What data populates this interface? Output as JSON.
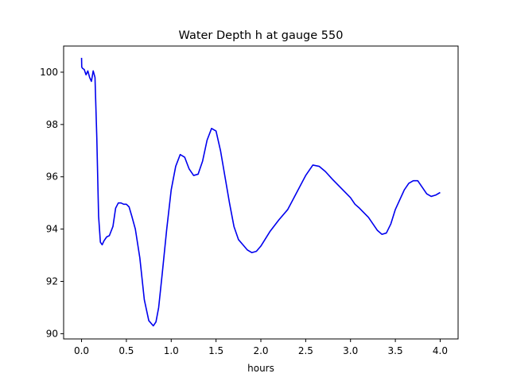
{
  "chart_data": {
    "type": "line",
    "title": "Water Depth h at gauge 550",
    "xlabel": "hours",
    "ylabel": "",
    "xlim": [
      -0.2,
      4.2
    ],
    "ylim": [
      89.8,
      101.0
    ],
    "xticks": [
      0.0,
      0.5,
      1.0,
      1.5,
      2.0,
      2.5,
      3.0,
      3.5,
      4.0
    ],
    "xtick_labels": [
      "0.0",
      "0.5",
      "1.0",
      "1.5",
      "2.0",
      "2.5",
      "3.0",
      "3.5",
      "4.0"
    ],
    "yticks": [
      90,
      92,
      94,
      96,
      98,
      100
    ],
    "ytick_labels": [
      "90",
      "92",
      "94",
      "96",
      "98",
      "100"
    ],
    "grid": false,
    "line_color": "#0000ee",
    "series": [
      {
        "x": [
          0.0,
          0.002,
          0.01,
          0.03,
          0.05,
          0.07,
          0.09,
          0.11,
          0.13,
          0.15,
          0.17,
          0.19,
          0.21,
          0.23,
          0.25,
          0.28,
          0.31,
          0.35,
          0.38,
          0.41,
          0.44,
          0.47,
          0.5,
          0.53,
          0.56,
          0.6,
          0.65,
          0.7,
          0.75,
          0.8,
          0.83,
          0.86,
          0.9,
          0.95,
          1.0,
          1.05,
          1.1,
          1.15,
          1.2,
          1.25,
          1.3,
          1.35,
          1.4,
          1.45,
          1.5,
          1.55,
          1.6,
          1.65,
          1.7,
          1.75,
          1.8,
          1.85,
          1.9,
          1.95,
          2.0,
          2.1,
          2.2,
          2.3,
          2.4,
          2.5,
          2.58,
          2.65,
          2.72,
          2.8,
          2.9,
          3.0,
          3.05,
          3.1,
          3.2,
          3.3,
          3.35,
          3.4,
          3.45,
          3.5,
          3.6,
          3.65,
          3.7,
          3.75,
          3.8,
          3.85,
          3.9,
          3.95,
          4.0
        ],
        "values": [
          100.55,
          100.2,
          100.15,
          100.1,
          99.9,
          100.05,
          99.8,
          99.65,
          100.05,
          99.8,
          97.5,
          94.5,
          93.5,
          93.4,
          93.55,
          93.7,
          93.75,
          94.1,
          94.8,
          95.0,
          95.0,
          94.95,
          94.95,
          94.85,
          94.5,
          94.0,
          92.9,
          91.3,
          90.5,
          90.3,
          90.45,
          91.0,
          92.3,
          94.0,
          95.5,
          96.4,
          96.85,
          96.75,
          96.3,
          96.05,
          96.1,
          96.6,
          97.4,
          97.85,
          97.75,
          97.0,
          96.0,
          95.0,
          94.1,
          93.6,
          93.4,
          93.2,
          93.1,
          93.15,
          93.35,
          93.9,
          94.35,
          94.75,
          95.4,
          96.05,
          96.45,
          96.4,
          96.2,
          95.9,
          95.55,
          95.2,
          94.95,
          94.8,
          94.45,
          93.95,
          93.8,
          93.85,
          94.2,
          94.75,
          95.5,
          95.75,
          95.85,
          95.85,
          95.6,
          95.35,
          95.25,
          95.3,
          95.4
        ]
      }
    ]
  }
}
